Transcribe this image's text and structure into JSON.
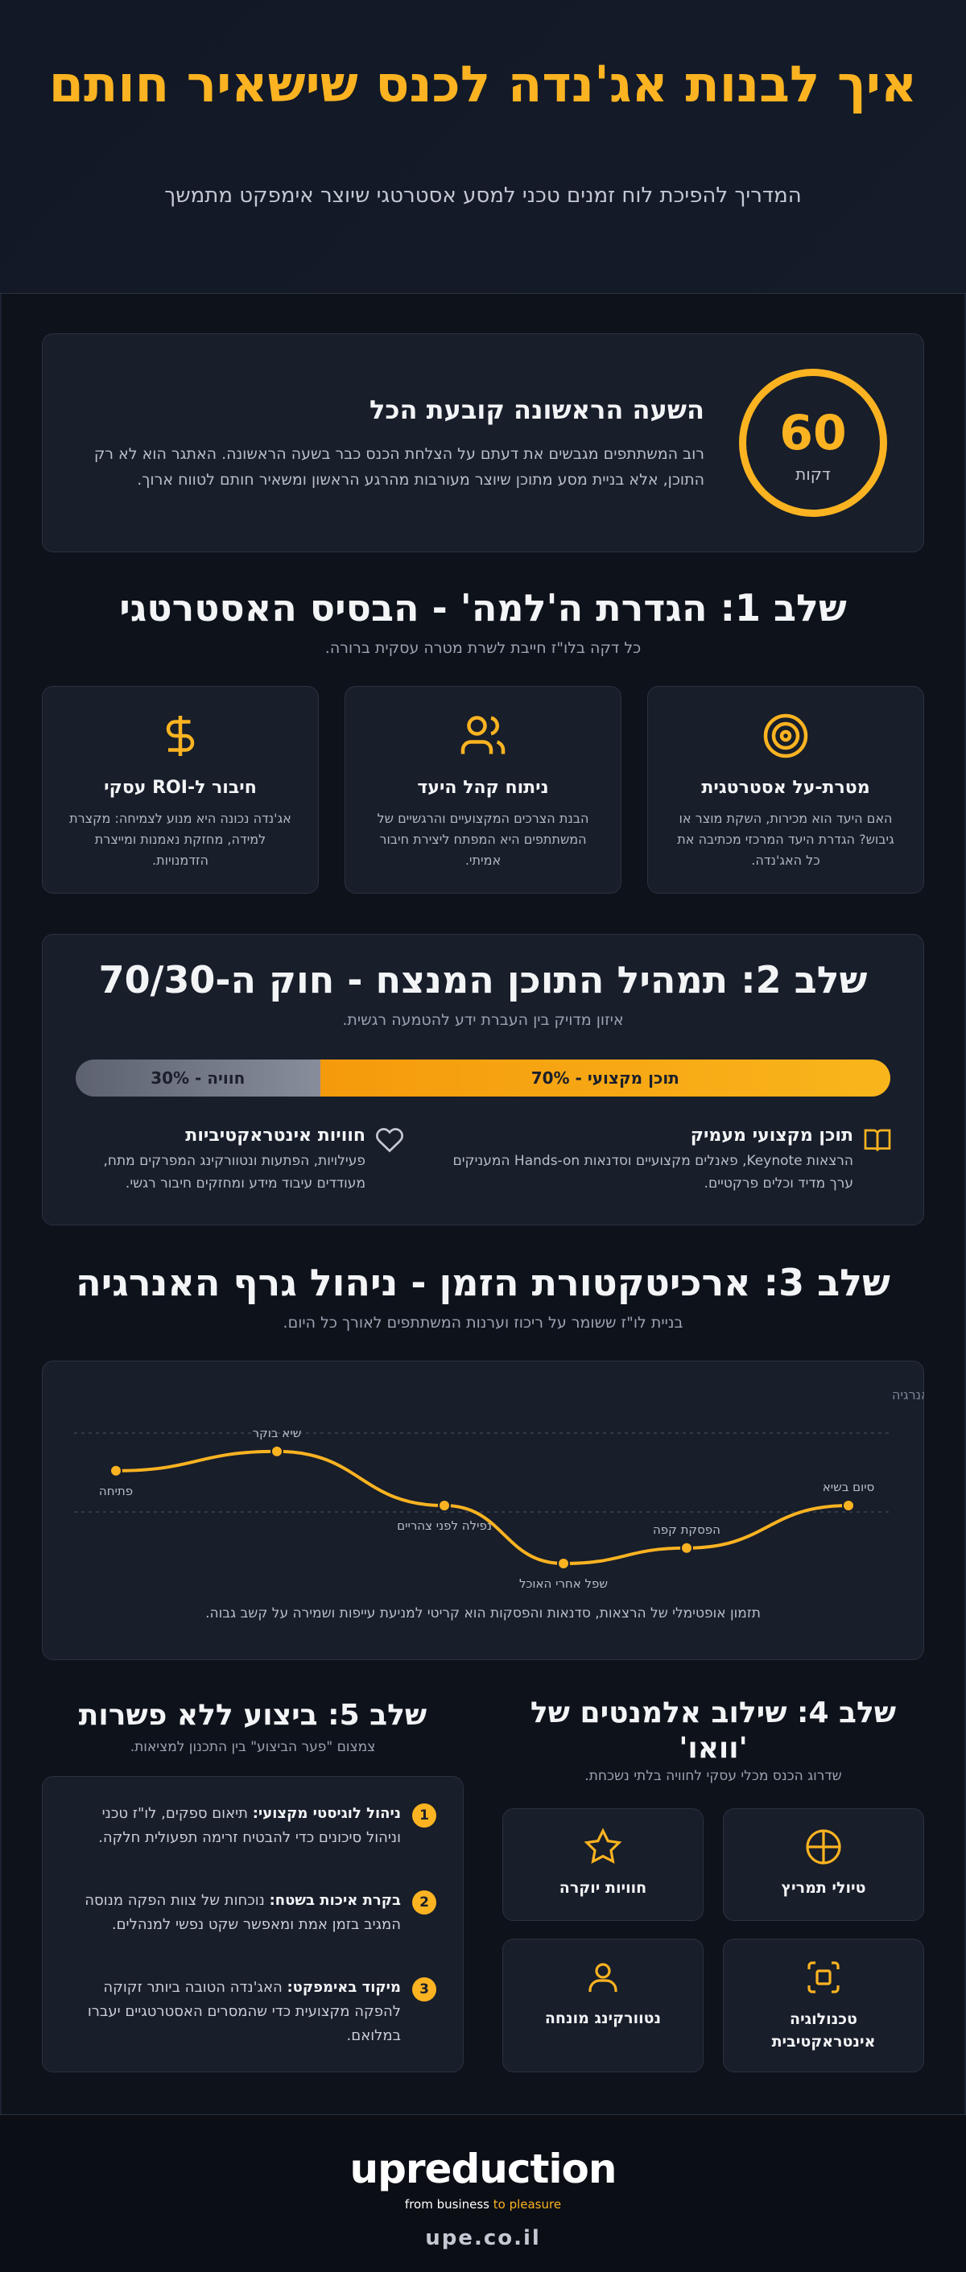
{
  "hero": {
    "title": "איך לבנות אג'נדה לכנס שישאיר חותם",
    "subtitle": "המדריך להפיכת לוח זמנים טכני למסע אסטרטגי שיוצר אימפקט מתמשך"
  },
  "first_hour": {
    "number": "60",
    "unit": "דקות",
    "title": "השעה הראשונה קובעת הכל",
    "text": "רוב המשתתפים מגבשים את דעתם על הצלחת הכנס כבר בשעה הראשונה. האתגר הוא לא רק התוכן, אלא בניית מסע מתוכן שיוצר מעורבות מהרגע הראשון ומשאיר חותם לטווח ארוך."
  },
  "step1": {
    "title": "שלב 1: הגדרת ה'למה' - הבסיס האסטרטגי",
    "subtitle": "כל דקה בלו\"ז חייבת לשרת מטרה עסקית ברורה.",
    "cards": [
      {
        "icon": "target-icon",
        "title": "מטרת-על אסטרטגית",
        "text": "האם היעד הוא מכירות, השקת מוצר או גיבוש? הגדרת היעד המרכזי מכתיבה את כל האג'נדה."
      },
      {
        "icon": "users-icon",
        "title": "ניתוח קהל היעד",
        "text": "הבנת הצרכים המקצועיים והרגשיים של המשתתפים היא המפתח ליצירת חיבור אמיתי."
      },
      {
        "icon": "dollar-icon",
        "title": "חיבור ל-ROI עסקי",
        "text": "אג'נדה נכונה היא מנוע לצמיחה: מקצרת למידה, מחזקת נאמנות ומייצרת הזדמנויות."
      }
    ]
  },
  "step2": {
    "title": "שלב 2: תמהיל התוכן המנצח - חוק ה-70/30",
    "subtitle": "איזון מדויק בין העברת ידע להטמעה רגשית.",
    "bar": {
      "content_label": "70% - תוכן מקצועי",
      "experience_label": "30% - חוויה",
      "content_fraction": 0.7
    },
    "items": [
      {
        "icon": "book-icon",
        "title": "תוכן מקצועי מעמיק",
        "text": "הרצאות Keynote, פאנלים מקצועיים וסדנאות Hands-on המעניקים ערך מדיד וכלים פרקטיים."
      },
      {
        "icon": "heart-icon",
        "title": "חוויות אינטראקטיביות",
        "text": "פעילויות, הפתעות ונטוורקינג המפרקים מתח, מעודדים עיבוד מידע ומחזקים חיבור רגשי."
      }
    ]
  },
  "step3": {
    "title": "שלב 3: ארכיטקטורת הזמן - ניהול גרף האנרגיה",
    "subtitle": "בניית לו\"ז ששומר על ריכוז וערנות המשתתפים לאורך כל היום.",
    "ylabel": "רמת אנרגיה",
    "points": [
      {
        "label": "פתיחה",
        "value": 0.68
      },
      {
        "label": "שיא בוקר",
        "value": 0.78
      },
      {
        "label": "נפילה לפני צהריים",
        "value": 0.5
      },
      {
        "label": "שפל אחרי האוכל",
        "value": 0.2
      },
      {
        "label": "הפסקת קפה",
        "value": 0.28
      },
      {
        "label": "סיום בשיא",
        "value": 0.5
      }
    ],
    "note": "תזמון אופטימלי של הרצאות, סדנאות והפסקות הוא קריטי למניעת עייפות ושמירה על קשב גבוה."
  },
  "step4": {
    "title": "שלב 4: שילוב אלמנטים של 'וואו'",
    "subtitle": "שדרוג הכנס מכלי עסקי לחוויה בלתי נשכחת.",
    "tiles": [
      {
        "icon": "crosshair-icon",
        "label": "טיולי תמריץ"
      },
      {
        "icon": "star-icon",
        "label": "חוויות יוקרה"
      },
      {
        "icon": "scan-icon",
        "label": "טכנולוגיה אינטראקטיבית"
      },
      {
        "icon": "person-icon",
        "label": "נטוורקינג מונחה"
      }
    ]
  },
  "step5": {
    "title": "שלב 5: ביצוע ללא פשרות",
    "subtitle": "צמצום \"פער הביצוע\" בין התכנון למציאות.",
    "items": [
      {
        "num": "1",
        "bold": "ניהול לוגיסטי מקצועי:",
        "text": " תיאום ספקים, לו\"ז טכני וניהול סיכונים כדי להבטיח זרימה תפעולית חלקה."
      },
      {
        "num": "2",
        "bold": "בקרת איכות בשטח:",
        "text": " נוכחות של צוות הפקה מנוסה המגיב בזמן אמת ומאפשר שקט נפשי למנהלים."
      },
      {
        "num": "3",
        "bold": "מיקוד באימפקט:",
        "text": " האג'נדה הטובה ביותר זקוקה להפקה מקצועית כדי שהמסרים האסטרטגיים יעברו במלואם."
      }
    ]
  },
  "footer": {
    "logo": "upreduction",
    "tagline_a": "from business ",
    "tagline_b": "to pleasure",
    "url": "upe.co.il"
  },
  "colors": {
    "accent": "#fbb321",
    "bg": "#0e121b",
    "card": "#181e2a"
  }
}
